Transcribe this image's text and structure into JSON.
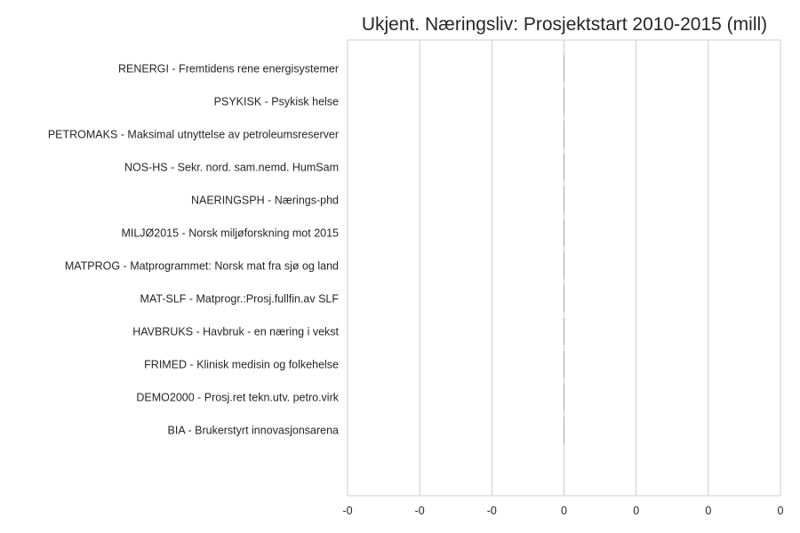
{
  "chart_data": {
    "type": "bar",
    "orientation": "horizontal",
    "title": "Ukjent. Næringsliv: Prosjektstart 2010-2015 (mill)",
    "xlabel": "",
    "ylabel": "",
    "categories": [
      "RENERGI - Fremtidens rene energisystemer",
      "PSYKISK - Psykisk helse",
      "PETROMAKS - Maksimal utnyttelse av petroleumsreserver",
      "NOS-HS - Sekr. nord. sam.nemd. HumSam",
      "NAERINGSPH - Nærings-phd",
      "MILJØ2015 - Norsk miljøforskning mot 2015",
      "MATPROG - Matprogrammet: Norsk mat fra sjø og land",
      "MAT-SLF - Matprogr.:Prosj.fullfin.av SLF",
      "HAVBRUKS - Havbruk - en næring i vekst",
      "FRIMED - Klinisk medisin og folkehelse",
      "DEMO2000 - Prosj.ret tekn.utv. petro.virk",
      "BIA - Brukerstyrt innovasjonsarena"
    ],
    "values": [
      0,
      0,
      0,
      0,
      0,
      0,
      0,
      0,
      0,
      0,
      0,
      0
    ],
    "x_ticks": [
      "-0",
      "-0",
      "-0",
      "0",
      "0",
      "0",
      "0"
    ],
    "xlim": [
      -0.06,
      0.06
    ],
    "grid": true,
    "colors": {
      "gridline": "#cccccc",
      "bar": "#bbbbbb",
      "text": "#262626"
    }
  }
}
